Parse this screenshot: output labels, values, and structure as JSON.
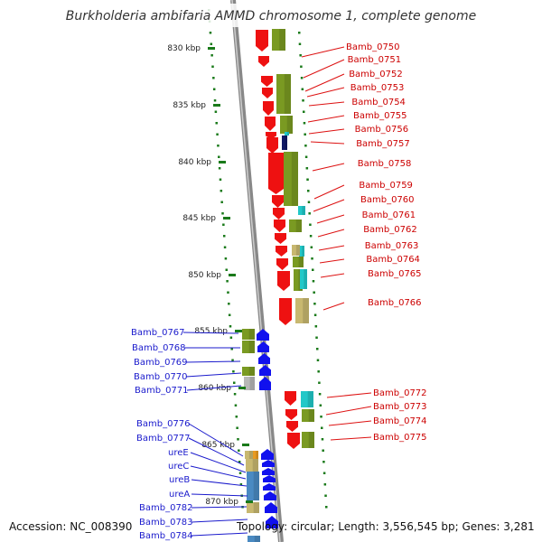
{
  "title": "Burkholderia ambifaria AMMD chromosome 1, complete genome",
  "accession": "Accession: NC_008390",
  "summary": "Topology: circular; Length: 3,556,545 bp; Genes: 3,281",
  "colors": {
    "forward_gene": "#ee1111",
    "reverse_gene": "#1111ee",
    "cds_olive": "#7a9a22",
    "cds_tan": "#c8b870",
    "cds_cyan": "#22c8c8",
    "cds_navy": "#111a66",
    "cds_steel": "#4a8ac2",
    "cds_gray": "#b8b8b8",
    "cds_orange": "#e89a20",
    "tick": "#1a7a1a",
    "backbone": "#888888"
  },
  "ticks": [
    "830 kbp",
    "835 kbp",
    "840 kbp",
    "845 kbp",
    "850 kbp",
    "855 kbp",
    "860 kbp",
    "865 kbp",
    "870 kbp"
  ],
  "right_genes": [
    "Bamb_0750",
    "Bamb_0751",
    "Bamb_0752",
    "Bamb_0753",
    "Bamb_0754",
    "Bamb_0755",
    "Bamb_0756",
    "Bamb_0757",
    "Bamb_0758",
    "Bamb_0759",
    "Bamb_0760",
    "Bamb_0761",
    "Bamb_0762",
    "Bamb_0763",
    "Bamb_0764",
    "Bamb_0765",
    "Bamb_0766",
    "Bamb_0772",
    "Bamb_0773",
    "Bamb_0774",
    "Bamb_0775"
  ],
  "left_genes": [
    "Bamb_0767",
    "Bamb_0768",
    "Bamb_0769",
    "Bamb_0770",
    "Bamb_0771",
    "Bamb_0776",
    "Bamb_0777",
    "ureE",
    "ureC",
    "ureB",
    "ureA",
    "Bamb_0782",
    "Bamb_0783",
    "Bamb_0784"
  ]
}
